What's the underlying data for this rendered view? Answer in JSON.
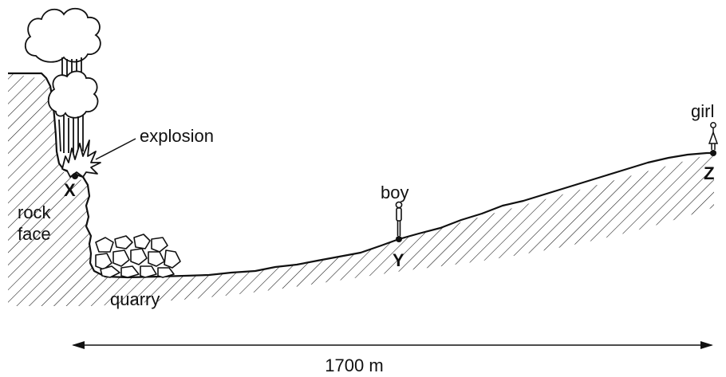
{
  "labels": {
    "explosion": "explosion",
    "point_x": "X",
    "rock_face_line1": "rock",
    "rock_face_line2": "face",
    "quarry": "quarry",
    "boy": "boy",
    "point_y": "Y",
    "girl": "girl",
    "point_z": "Z",
    "distance": "1700 m"
  },
  "colors": {
    "ink": "#111111",
    "background": "#ffffff"
  }
}
